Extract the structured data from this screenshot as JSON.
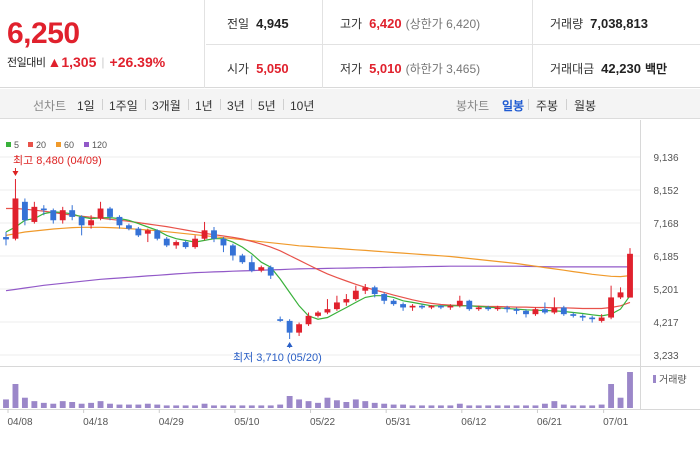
{
  "price": {
    "current": "6,250",
    "change_label": "전일대비",
    "change_arrow": "▲",
    "change_value": "1,305",
    "change_pct": "+26.39%"
  },
  "stats": {
    "prev_close_label": "전일",
    "prev_close": "4,945",
    "high_label": "고가",
    "high": "6,420",
    "upper_limit": "(상한가 6,420)",
    "volume_label": "거래량",
    "volume": "7,038,813",
    "open_label": "시가",
    "open": "5,050",
    "low_label": "저가",
    "low": "5,010",
    "lower_limit": "(하한가 3,465)",
    "amount_label": "거래대금",
    "amount": "42,230",
    "amount_unit": "백만"
  },
  "tabs": {
    "line_chart_label": "선차트",
    "periods": [
      "1일",
      "1주일",
      "3개월",
      "1년",
      "3년",
      "5년",
      "10년"
    ],
    "candle_chart_label": "봉차트",
    "candles": [
      "일봉",
      "주봉",
      "월봉"
    ],
    "active_candle": "일봉"
  },
  "colors": {
    "up": "#e0212d",
    "down": "#3572d6",
    "ma5": "#39b13b",
    "ma20": "#e8524a",
    "ma60": "#f09a2b",
    "ma120": "#9259c8",
    "volume": "#9b87c9"
  },
  "chart_data": {
    "type": "candlestick",
    "legend": [
      {
        "name": "5",
        "color": "#39b13b"
      },
      {
        "name": "20",
        "color": "#e8524a"
      },
      {
        "name": "60",
        "color": "#f09a2b"
      },
      {
        "name": "120",
        "color": "#9259c8"
      }
    ],
    "y_ticks": [
      "9,136",
      "8,152",
      "7,168",
      "6,185",
      "5,201",
      "4,217",
      "3,233"
    ],
    "y_range": [
      3233,
      9136
    ],
    "x_labels": [
      "04/08",
      "04/18",
      "04/29",
      "05/10",
      "05/22",
      "05/31",
      "06/12",
      "06/21",
      "07/01"
    ],
    "x_label_index": [
      0,
      8,
      16,
      24,
      32,
      40,
      48,
      56,
      63
    ],
    "high_marker": "최고 8,480 (04/09)",
    "low_marker": "최저 3,710 (05/20)",
    "high_marker_index": 1,
    "high_marker_value": 8480,
    "low_marker_index": 30,
    "low_marker_value": 3710,
    "volume_label": "거래량",
    "candles": [
      [
        6750,
        6680,
        6900,
        6500
      ],
      [
        6700,
        7900,
        8480,
        6650
      ],
      [
        7800,
        7250,
        7900,
        7100
      ],
      [
        7200,
        7650,
        7800,
        7150
      ],
      [
        7600,
        7550,
        7700,
        7400
      ],
      [
        7550,
        7250,
        7600,
        7150
      ],
      [
        7250,
        7550,
        7650,
        7150
      ],
      [
        7550,
        7350,
        7700,
        7250
      ],
      [
        7350,
        7100,
        7400,
        6800
      ],
      [
        7100,
        7250,
        7400,
        7000
      ],
      [
        7300,
        7600,
        7800,
        7250
      ],
      [
        7600,
        7350,
        7650,
        7250
      ],
      [
        7350,
        7100,
        7400,
        7000
      ],
      [
        7100,
        7000,
        7150,
        6950
      ],
      [
        7000,
        6800,
        7050,
        6750
      ],
      [
        6850,
        6950,
        7000,
        6600
      ],
      [
        6950,
        6700,
        6980,
        6650
      ],
      [
        6700,
        6500,
        6750,
        6450
      ],
      [
        6500,
        6600,
        6650,
        6400
      ],
      [
        6600,
        6450,
        6650,
        6400
      ],
      [
        6450,
        6700,
        6800,
        6400
      ],
      [
        6700,
        6950,
        7200,
        6650
      ],
      [
        6950,
        6700,
        7050,
        6600
      ],
      [
        6700,
        6500,
        6750,
        6300
      ],
      [
        6500,
        6200,
        6550,
        6050
      ],
      [
        6200,
        6000,
        6250,
        5950
      ],
      [
        6000,
        5750,
        6200,
        5700
      ],
      [
        5750,
        5850,
        5900,
        5700
      ],
      [
        5850,
        5600,
        5900,
        5500
      ],
      [
        4300,
        4250,
        4380,
        4220
      ],
      [
        4250,
        3900,
        4300,
        3710
      ],
      [
        3900,
        4150,
        4200,
        3800
      ],
      [
        4150,
        4400,
        4500,
        4100
      ],
      [
        4400,
        4500,
        4550,
        4350
      ],
      [
        4500,
        4600,
        4900,
        4450
      ],
      [
        4600,
        4800,
        5000,
        4550
      ],
      [
        4800,
        4900,
        5050,
        4700
      ],
      [
        4900,
        5150,
        5300,
        4850
      ],
      [
        5150,
        5250,
        5350,
        5050
      ],
      [
        5250,
        5050,
        5300,
        4950
      ],
      [
        5050,
        4850,
        5100,
        4750
      ],
      [
        4850,
        4750,
        4900,
        4700
      ],
      [
        4750,
        4650,
        4800,
        4550
      ],
      [
        4650,
        4700,
        4750,
        4550
      ],
      [
        4700,
        4650,
        4750,
        4600
      ],
      [
        4650,
        4700,
        4720,
        4600
      ],
      [
        4700,
        4650,
        4720,
        4600
      ],
      [
        4650,
        4700,
        4750,
        4580
      ],
      [
        4700,
        4850,
        5000,
        4650
      ],
      [
        4850,
        4600,
        4880,
        4550
      ],
      [
        4600,
        4650,
        4700,
        4550
      ],
      [
        4650,
        4600,
        4700,
        4550
      ],
      [
        4600,
        4650,
        4700,
        4550
      ],
      [
        4650,
        4600,
        4700,
        4500
      ],
      [
        4600,
        4550,
        4650,
        4450
      ],
      [
        4550,
        4450,
        4600,
        4350
      ],
      [
        4450,
        4600,
        4650,
        4400
      ],
      [
        4600,
        4500,
        4800,
        4450
      ],
      [
        4500,
        4650,
        4950,
        4450
      ],
      [
        4650,
        4450,
        4700,
        4400
      ],
      [
        4450,
        4400,
        4500,
        4350
      ],
      [
        4400,
        4350,
        4450,
        4250
      ],
      [
        4350,
        4300,
        4400,
        4200
      ],
      [
        4250,
        4350,
        4450,
        4200
      ],
      [
        4350,
        4950,
        5300,
        4300
      ],
      [
        4950,
        5100,
        5250,
        4900
      ],
      [
        4945,
        6250,
        6420,
        5010
      ]
    ],
    "volumes": [
      10,
      28,
      12,
      8,
      6,
      5,
      8,
      7,
      5,
      6,
      8,
      5,
      4,
      4,
      4,
      5,
      4,
      3,
      3,
      3,
      3,
      5,
      3,
      3,
      3,
      3,
      3,
      3,
      3,
      4,
      14,
      10,
      8,
      6,
      12,
      9,
      7,
      10,
      8,
      6,
      5,
      4,
      4,
      3,
      3,
      3,
      3,
      3,
      5,
      3,
      3,
      3,
      3,
      3,
      3,
      3,
      3,
      5,
      8,
      4,
      3,
      3,
      3,
      4,
      28,
      12,
      42
    ],
    "ma5": [
      6900,
      7050,
      7250,
      7300,
      7450,
      7500,
      7480,
      7440,
      7350,
      7300,
      7320,
      7330,
      7300,
      7250,
      7150,
      7050,
      6950,
      6800,
      6700,
      6650,
      6600,
      6650,
      6700,
      6700,
      6600,
      6450,
      6250,
      6000,
      5850,
      5500,
      5100,
      4700,
      4400,
      4300,
      4350,
      4500,
      4650,
      4800,
      4950,
      5000,
      5000,
      4950,
      4850,
      4800,
      4750,
      4700,
      4700,
      4700,
      4700,
      4700,
      4680,
      4660,
      4640,
      4620,
      4600,
      4580,
      4570,
      4560,
      4550,
      4530,
      4500,
      4470,
      4430,
      4400,
      4450,
      4600,
      5000
    ],
    "ma20": [
      7600,
      7600,
      7580,
      7550,
      7520,
      7480,
      7440,
      7400,
      7370,
      7340,
      7310,
      7280,
      7250,
      7220,
      7180,
      7140,
      7100,
      7060,
      7010,
      6960,
      6910,
      6860,
      6820,
      6780,
      6740,
      6690,
      6620,
      6540,
      6450,
      6340,
      6200,
      6060,
      5920,
      5780,
      5650,
      5540,
      5440,
      5340,
      5250,
      5170,
      5100,
      5020,
      4950,
      4880,
      4820,
      4770,
      4740,
      4720,
      4710,
      4700,
      4690,
      4680,
      4680,
      4670,
      4660,
      4660,
      4650,
      4650,
      4640,
      4640,
      4630,
      4620,
      4620,
      4620,
      4650,
      4700,
      4800
    ],
    "ma60": [
      6800,
      6850,
      6900,
      6930,
      6960,
      6990,
      7010,
      7030,
      7040,
      7040,
      7040,
      7030,
      7020,
      7000,
      6980,
      6960,
      6940,
      6910,
      6880,
      6850,
      6820,
      6790,
      6760,
      6730,
      6700,
      6670,
      6640,
      6610,
      6580,
      6550,
      6520,
      6490,
      6470,
      6450,
      6430,
      6410,
      6390,
      6370,
      6350,
      6330,
      6310,
      6290,
      6270,
      6250,
      6230,
      6210,
      6190,
      6170,
      6140,
      6110,
      6080,
      6050,
      6020,
      5990,
      5960,
      5920,
      5880,
      5840,
      5800,
      5760,
      5720,
      5680,
      5640,
      5610,
      5580,
      5570,
      5600
    ],
    "ma120": [
      5150,
      5190,
      5230,
      5270,
      5310,
      5340,
      5370,
      5400,
      5430,
      5460,
      5490,
      5510,
      5530,
      5550,
      5570,
      5590,
      5610,
      5630,
      5650,
      5670,
      5690,
      5700,
      5710,
      5720,
      5730,
      5740,
      5750,
      5760,
      5770,
      5780,
      5790,
      5800,
      5805,
      5810,
      5815,
      5820,
      5825,
      5830,
      5835,
      5840,
      5845,
      5850,
      5855,
      5860,
      5865,
      5870,
      5875,
      5880,
      5880,
      5880,
      5880,
      5880,
      5880,
      5880,
      5880,
      5875,
      5870,
      5865,
      5860,
      5860,
      5860,
      5860,
      5860,
      5860,
      5860,
      5860,
      5860
    ]
  }
}
